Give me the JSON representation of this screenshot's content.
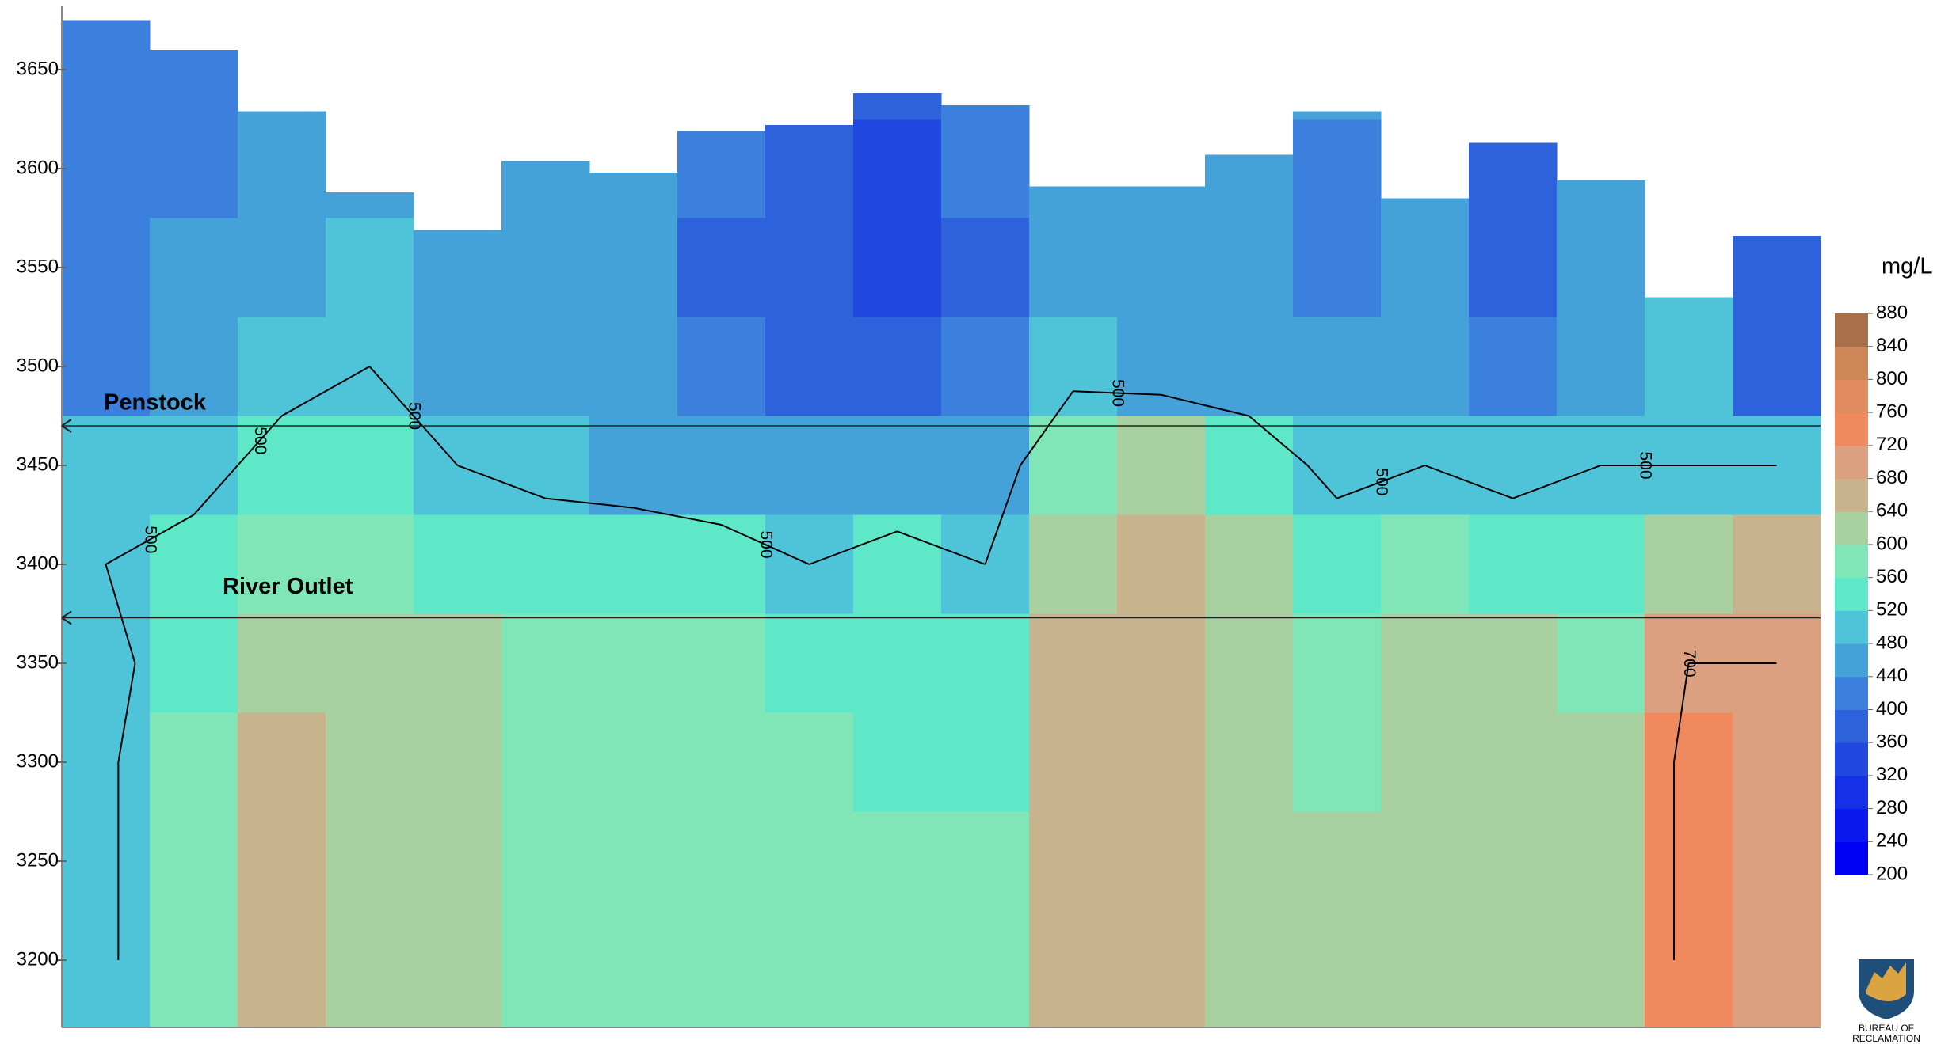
{
  "chart_data": {
    "type": "contour",
    "ylim": [
      3166,
      3682
    ],
    "yticks": [
      3200,
      3250,
      3300,
      3350,
      3400,
      3450,
      3500,
      3550,
      3600,
      3650
    ],
    "elevations": [
      3650,
      3600,
      3550,
      3500,
      3450,
      3400,
      3350,
      3300,
      3250,
      3200
    ],
    "surface": [
      3675,
      3660,
      3629,
      3588,
      3569,
      3604,
      3598,
      3619,
      3622,
      3638,
      3632,
      3591,
      3591,
      3607,
      3629,
      3585,
      3613,
      3594,
      3535,
      3566
    ],
    "z": [
      [
        400,
        400,
        400,
        420,
        490,
        500,
        480,
        490,
        490,
        490
      ],
      [
        420,
        420,
        440,
        460,
        480,
        520,
        540,
        560,
        560,
        560
      ],
      [
        440,
        440,
        460,
        480,
        520,
        560,
        620,
        640,
        660,
        660
      ],
      [
        null,
        460,
        480,
        500,
        520,
        580,
        620,
        620,
        600,
        600
      ],
      [
        null,
        null,
        460,
        440,
        500,
        540,
        600,
        620,
        620,
        600
      ],
      [
        null,
        460,
        440,
        440,
        480,
        540,
        560,
        580,
        580,
        580
      ],
      [
        null,
        440,
        440,
        440,
        470,
        540,
        560,
        580,
        580,
        580
      ],
      [
        null,
        400,
        380,
        400,
        470,
        520,
        560,
        560,
        560,
        560
      ],
      [
        null,
        380,
        360,
        380,
        460,
        500,
        540,
        560,
        560,
        560
      ],
      [
        380,
        340,
        340,
        380,
        460,
        520,
        520,
        540,
        560,
        560
      ],
      [
        400,
        400,
        380,
        420,
        460,
        500,
        520,
        540,
        560,
        560
      ],
      [
        null,
        460,
        460,
        480,
        560,
        620,
        640,
        640,
        640,
        640
      ],
      [
        null,
        460,
        440,
        460,
        600,
        660,
        660,
        640,
        640,
        640
      ],
      [
        null,
        440,
        440,
        460,
        540,
        620,
        620,
        620,
        620,
        620
      ],
      [
        440,
        420,
        420,
        440,
        480,
        540,
        560,
        580,
        600,
        600
      ],
      [
        null,
        460,
        440,
        460,
        500,
        560,
        600,
        600,
        600,
        600
      ],
      [
        null,
        380,
        360,
        400,
        480,
        540,
        600,
        620,
        620,
        620
      ],
      [
        null,
        460,
        440,
        460,
        500,
        540,
        580,
        600,
        600,
        600
      ],
      [
        null,
        null,
        480,
        480,
        500,
        620,
        700,
        720,
        720,
        720
      ],
      [
        null,
        null,
        360,
        380,
        500,
        640,
        700,
        700,
        700,
        700
      ]
    ],
    "contour_levels": [
      500,
      700
    ],
    "outlets": [
      {
        "label": "Penstock",
        "elevation": 3470
      },
      {
        "label": "River Outlet",
        "elevation": 3373
      }
    ],
    "colorbar": {
      "label": "mg/L",
      "ticks": [
        200,
        240,
        280,
        320,
        360,
        400,
        440,
        480,
        520,
        560,
        600,
        640,
        680,
        720,
        760,
        800,
        840,
        880
      ],
      "colors": [
        "#0000f5",
        "#0a18ee",
        "#1530e6",
        "#2048e0",
        "#2d62dc",
        "#3a80dc",
        "#45a2d8",
        "#4fc4d8",
        "#5ee8c8",
        "#80e6b8",
        "#a8d0a0",
        "#c8b48c",
        "#daa080",
        "#f08a5e",
        "#e08a60",
        "#cc8658",
        "#a87048"
      ]
    },
    "logo_lines": [
      "BUREAU OF",
      "RECLAMATION"
    ]
  }
}
